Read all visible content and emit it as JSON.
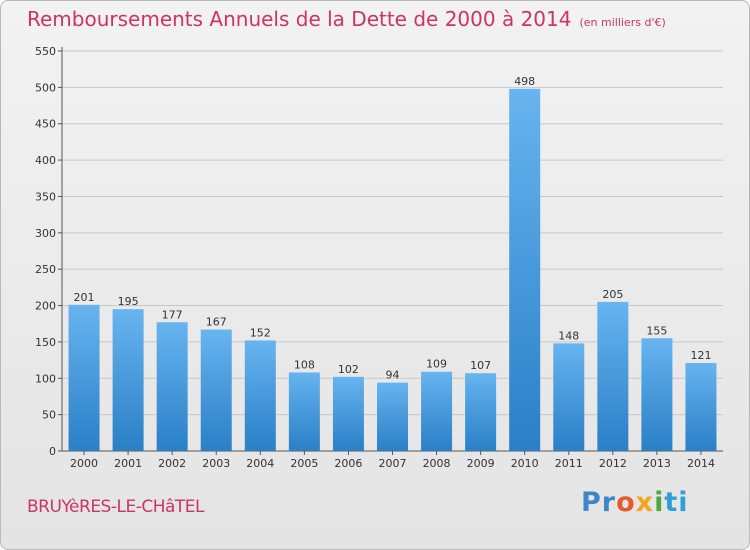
{
  "header": {
    "title": "Remboursements Annuels de la Dette de 2000 à 2014",
    "subtitle": "(en milliers d'€)"
  },
  "footer": {
    "city": "BRUYèRES-LE-CHâTEL",
    "logo_text": "Proxiti"
  },
  "colors": {
    "title": "#cc3366",
    "bar_light": "#67b4f0",
    "bar_dark": "#2a7fc6"
  },
  "chart_data": {
    "type": "bar",
    "title": "Remboursements Annuels de la Dette de 2000 à 2014",
    "xlabel": "",
    "ylabel": "",
    "categories": [
      "2000",
      "2001",
      "2002",
      "2003",
      "2004",
      "2005",
      "2006",
      "2007",
      "2008",
      "2009",
      "2010",
      "2011",
      "2012",
      "2013",
      "2014"
    ],
    "values": [
      201,
      195,
      177,
      167,
      152,
      108,
      102,
      94,
      109,
      107,
      498,
      148,
      205,
      155,
      121
    ],
    "ylim": [
      0,
      550
    ],
    "yticks": [
      0,
      50,
      100,
      150,
      200,
      250,
      300,
      350,
      400,
      450,
      500,
      550
    ],
    "grid": true,
    "legend": "none"
  }
}
